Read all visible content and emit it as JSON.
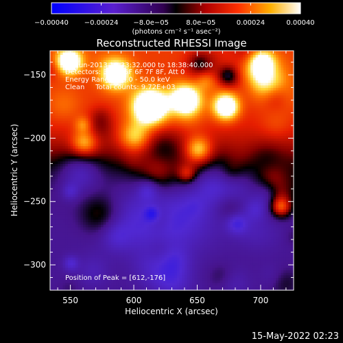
{
  "chart_data": {
    "type": "heatmap",
    "title": "Reconstructed RHESSI Image",
    "xlabel": "Heliocentric X (arcsec)",
    "ylabel": "Heliocentric Y (arcsec)",
    "xlim": [
      534,
      726
    ],
    "ylim": [
      -320,
      -131
    ],
    "x_ticks": [
      550,
      600,
      650,
      700
    ],
    "y_ticks": [
      -150,
      -200,
      -250,
      -300
    ],
    "x_tick_labels": [
      "550",
      "600",
      "650",
      "700"
    ],
    "y_tick_labels": [
      "−150",
      "−200",
      "−250",
      "−300"
    ],
    "colorbar": {
      "min": -0.0004,
      "max": 0.0004,
      "ticks": [
        -0.0004,
        -0.00024,
        -8e-05,
        8e-05,
        0.00024,
        0.0004
      ],
      "tick_labels": [
        "−0.00040",
        "−0.00024",
        "−8.0e−05",
        "8.0e−05",
        "0.00024",
        "0.00040"
      ],
      "label": "(photons cm⁻² s⁻¹ asec⁻²)",
      "colormap": "blue-purple-black-red-orange-yellow-white"
    },
    "annotations": {
      "time_range": "30-Jun-2013 18:33:32.000 to 18:38:40.000",
      "detectors": "Detectors: 3F 4F 5F 6F 7F 8F, Att 0",
      "energy_range": "Energy Range: 25.0 - 50.0 keV",
      "method_counts": "Clean     Total counts: 9.72E+03",
      "peak": "Position of Peak = [612,-176]"
    },
    "peak_position": [
      612,
      -176
    ],
    "grid": false,
    "legend": "colorbar-top"
  },
  "footer": {
    "timestamp": "15-May-2022 02:23"
  }
}
